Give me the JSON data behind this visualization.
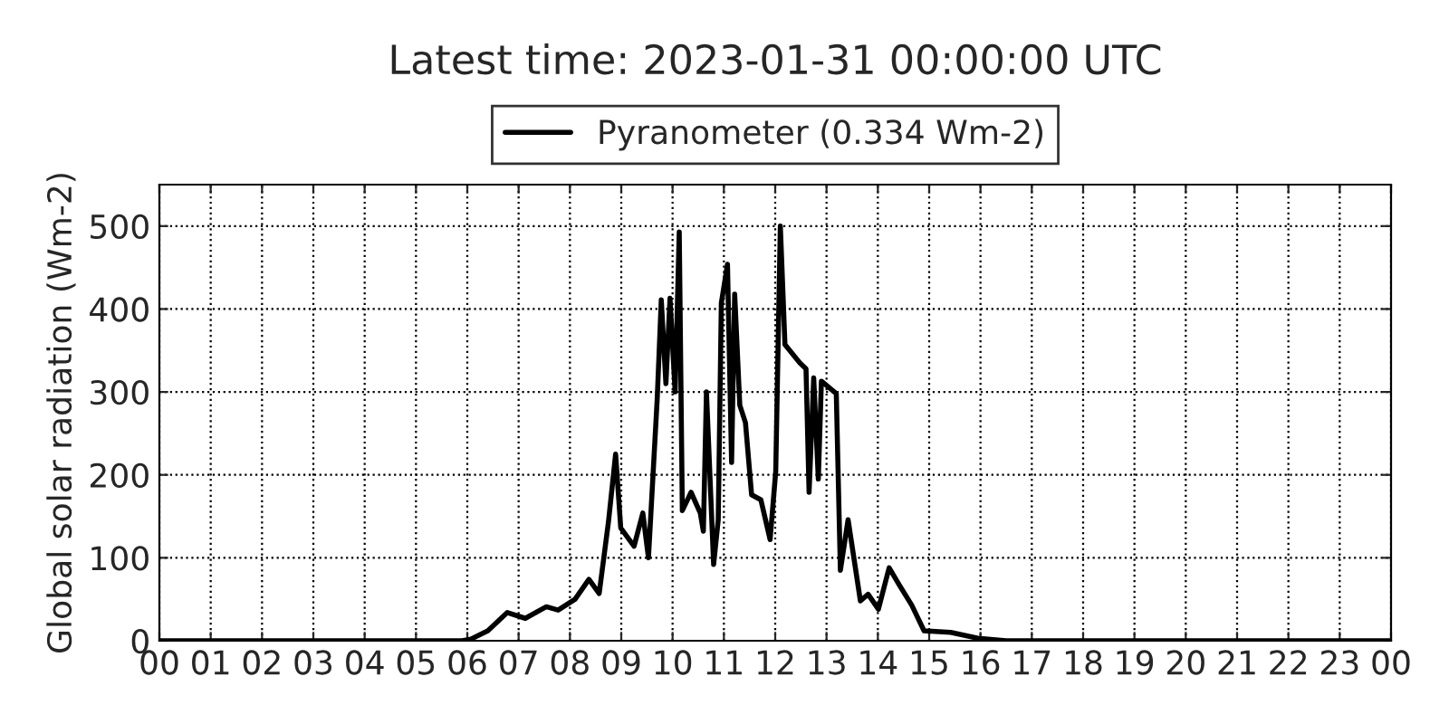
{
  "chart_data": {
    "type": "line",
    "title": "Latest time: 2023-01-31 00:00:00 UTC",
    "ylabel": "Global solar radiation (Wm-2)",
    "x": [
      0,
      5.9,
      6.07,
      6.4,
      6.78,
      7.13,
      7.54,
      7.77,
      8.1,
      8.37,
      8.57,
      8.75,
      8.89,
      8.99,
      9.25,
      9.42,
      9.53,
      9.7,
      9.78,
      9.87,
      9.95,
      10.05,
      10.13,
      10.19,
      10.36,
      10.54,
      10.6,
      10.66,
      10.8,
      10.89,
      10.95,
      11.07,
      11.15,
      11.21,
      11.31,
      11.42,
      11.54,
      11.72,
      11.9,
      12.01,
      12.1,
      12.19,
      12.48,
      12.6,
      12.66,
      12.75,
      12.84,
      12.9,
      13.19,
      13.27,
      13.42,
      13.66,
      13.81,
      14.01,
      14.22,
      14.42,
      14.66,
      14.9,
      15.42,
      15.95,
      16.5,
      24
    ],
    "series": [
      {
        "name": "Pyranometer (0.334 Wm-2)",
        "color": "#000000",
        "values": [
          0,
          0,
          2,
          12,
          34,
          27,
          41,
          37,
          50,
          74,
          57,
          143,
          225,
          136,
          114,
          154,
          100,
          291,
          411,
          310,
          413,
          300,
          493,
          157,
          179,
          154,
          132,
          300,
          92,
          146,
          407,
          454,
          215,
          418,
          284,
          263,
          176,
          170,
          122,
          204,
          500,
          357,
          335,
          328,
          179,
          317,
          195,
          313,
          298,
          85,
          146,
          48,
          56,
          38,
          88,
          67,
          43,
          12,
          10,
          3,
          0,
          0
        ]
      }
    ],
    "xlim": [
      0,
      24
    ],
    "xticks": [
      {
        "value": 0,
        "label": "00"
      },
      {
        "value": 1,
        "label": "01"
      },
      {
        "value": 2,
        "label": "02"
      },
      {
        "value": 3,
        "label": "03"
      },
      {
        "value": 4,
        "label": "04"
      },
      {
        "value": 5,
        "label": "05"
      },
      {
        "value": 6,
        "label": "06"
      },
      {
        "value": 7,
        "label": "07"
      },
      {
        "value": 8,
        "label": "08"
      },
      {
        "value": 9,
        "label": "09"
      },
      {
        "value": 10,
        "label": "10"
      },
      {
        "value": 11,
        "label": "11"
      },
      {
        "value": 12,
        "label": "12"
      },
      {
        "value": 13,
        "label": "13"
      },
      {
        "value": 14,
        "label": "14"
      },
      {
        "value": 15,
        "label": "15"
      },
      {
        "value": 16,
        "label": "16"
      },
      {
        "value": 17,
        "label": "17"
      },
      {
        "value": 18,
        "label": "18"
      },
      {
        "value": 19,
        "label": "19"
      },
      {
        "value": 20,
        "label": "20"
      },
      {
        "value": 21,
        "label": "21"
      },
      {
        "value": 22,
        "label": "22"
      },
      {
        "value": 23,
        "label": "23"
      },
      {
        "value": 24,
        "label": "00"
      }
    ],
    "ylim": [
      0,
      550
    ],
    "yticks": [
      0,
      100,
      200,
      300,
      400,
      500
    ],
    "grid": true,
    "legend": "top",
    "line_style": "solid",
    "marker": "none"
  }
}
